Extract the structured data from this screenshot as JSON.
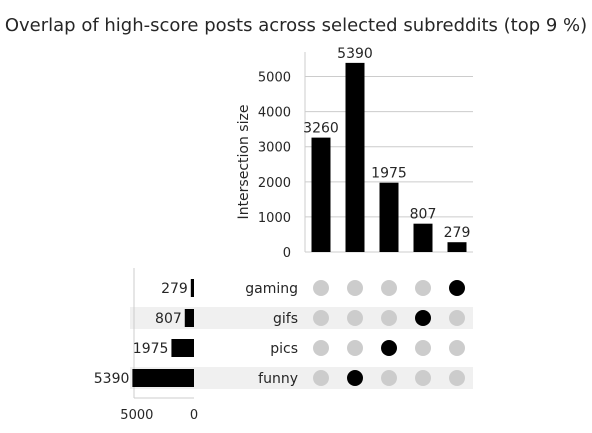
{
  "chart_data": {
    "type": "bar",
    "subtype": "upset",
    "title": "Overlap of high-score posts across selected subreddits (top 9 %)",
    "ylabel": "Intersection size",
    "ylim": [
      0,
      5700
    ],
    "y_ticks": [
      0,
      1000,
      2000,
      3000,
      4000,
      5000
    ],
    "sets": [
      "gaming",
      "gifs",
      "pics",
      "funny"
    ],
    "set_sizes": [
      279,
      807,
      1975,
      5390
    ],
    "set_size_ticks": [
      5000,
      0
    ],
    "set_size_xlim": [
      0,
      5600
    ],
    "intersections": [
      {
        "value": 3260,
        "members": []
      },
      {
        "value": 5390,
        "members": [
          "funny"
        ]
      },
      {
        "value": 1975,
        "members": [
          "pics"
        ]
      },
      {
        "value": 807,
        "members": [
          "gifs"
        ]
      },
      {
        "value": 279,
        "members": [
          "gaming"
        ]
      }
    ],
    "grid": true,
    "colors": {
      "bar": "#000000",
      "dot_active": "#000000",
      "dot_inactive": "#cccccc",
      "row_shade": "#f0f0f0",
      "grid": "#cccccc"
    }
  }
}
